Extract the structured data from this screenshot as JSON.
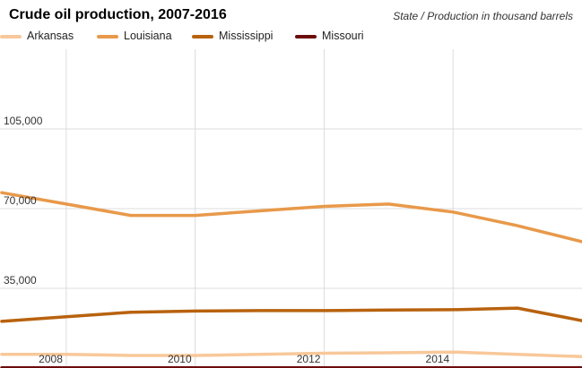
{
  "chart_data": {
    "type": "line",
    "title": "Crude oil production, 2007-2016",
    "subtitle": "State / Production in thousand barrels",
    "xlabel": "",
    "ylabel": "",
    "x": [
      2007,
      2008,
      2009,
      2010,
      2011,
      2012,
      2013,
      2014,
      2015,
      2016
    ],
    "xticks": [
      "2008",
      "2010",
      "2012",
      "2014"
    ],
    "yticks": [
      "35,000",
      "70,000",
      "105,000"
    ],
    "xlim": [
      2007,
      2016
    ],
    "ylim": [
      0,
      140000
    ],
    "grid": true,
    "legend_position": "top-left",
    "series": [
      {
        "name": "Arkansas",
        "color": "#f8c89a",
        "values": [
          6000,
          6000,
          5500,
          5500,
          6000,
          6500,
          6700,
          7000,
          6000,
          5000
        ]
      },
      {
        "name": "Louisiana",
        "color": "#e8994a",
        "values": [
          77000,
          72000,
          67000,
          67000,
          69000,
          71000,
          72000,
          68500,
          62500,
          55500
        ]
      },
      {
        "name": "Mississippi",
        "color": "#b8620e",
        "values": [
          20500,
          22500,
          24500,
          25000,
          25200,
          25200,
          25500,
          25600,
          26300,
          20800
        ]
      },
      {
        "name": "Missouri",
        "color": "#6b0c0c",
        "values": [
          70,
          70,
          70,
          70,
          70,
          70,
          70,
          70,
          70,
          70
        ]
      }
    ]
  }
}
